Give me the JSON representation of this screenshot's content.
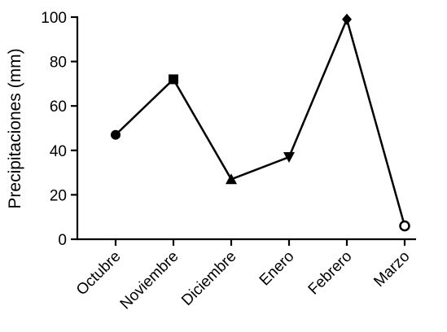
{
  "chart_data": {
    "type": "line",
    "title": "",
    "xlabel": "",
    "ylabel": "Precipitaciones (mm)",
    "categories": [
      "Octubre",
      "Noviembre",
      "Diciembre",
      "Enero",
      "Febrero",
      "Marzo"
    ],
    "series": [
      {
        "values": [
          47,
          72,
          27,
          37,
          99,
          6
        ],
        "markers": [
          "circle",
          "square",
          "triangle-up",
          "triangle-down",
          "diamond",
          "circle-open"
        ],
        "color": "#000000"
      }
    ],
    "ylim": [
      0,
      100
    ],
    "yticks": [
      0,
      20,
      40,
      60,
      80,
      100
    ],
    "grid": false,
    "legend": "none"
  }
}
